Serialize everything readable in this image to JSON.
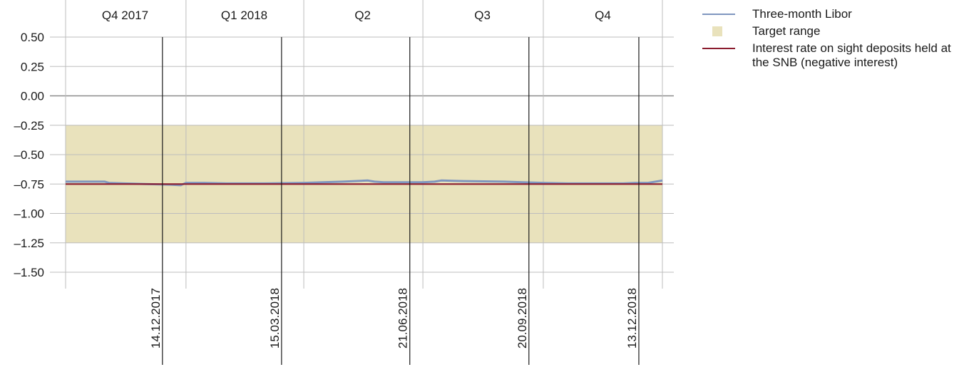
{
  "chart_data": {
    "type": "line",
    "title": "",
    "xlabel": "",
    "ylabel": "",
    "ylim": [
      -1.5,
      0.5
    ],
    "y_ticks": [
      "0.50",
      "0.25",
      "0.00",
      "–0.25",
      "–0.50",
      "–0.75",
      "–1.00",
      "–1.25",
      "–1.50"
    ],
    "y_tick_values": [
      0.5,
      0.25,
      0.0,
      -0.25,
      -0.5,
      -0.75,
      -1.0,
      -1.25,
      -1.5
    ],
    "xlim": [
      "2017-10-01",
      "2018-12-31"
    ],
    "quarters": [
      {
        "label": "Q4 2017",
        "start": "2017-10-01",
        "end": "2017-12-31"
      },
      {
        "label": "Q1 2018",
        "start": "2018-01-01",
        "end": "2018-03-31"
      },
      {
        "label": "Q2",
        "start": "2018-04-01",
        "end": "2018-06-30"
      },
      {
        "label": "Q3",
        "start": "2018-07-01",
        "end": "2018-09-30"
      },
      {
        "label": "Q4",
        "start": "2018-10-01",
        "end": "2018-12-31"
      }
    ],
    "assessment_dates": [
      {
        "label": "14.12.2017",
        "date": "2017-12-14"
      },
      {
        "label": "15.03.2018",
        "date": "2018-03-15"
      },
      {
        "label": "21.06.2018",
        "date": "2018-06-21"
      },
      {
        "label": "20.09.2018",
        "date": "2018-09-20"
      },
      {
        "label": "13.12.2018",
        "date": "2018-12-13"
      }
    ],
    "target_range": {
      "name": "Target range",
      "low": -1.25,
      "high": -0.25,
      "color": "#e9e2bc"
    },
    "series": [
      {
        "name": "Three-month Libor",
        "color": "#7f96bf",
        "x": [
          "2017-10-01",
          "2017-10-31",
          "2017-11-03",
          "2017-11-15",
          "2017-12-01",
          "2017-12-20",
          "2017-12-28",
          "2018-01-01",
          "2018-01-15",
          "2018-02-01",
          "2018-03-01",
          "2018-04-01",
          "2018-05-01",
          "2018-05-20",
          "2018-05-25",
          "2018-06-01",
          "2018-06-15",
          "2018-07-01",
          "2018-07-10",
          "2018-07-15",
          "2018-08-01",
          "2018-09-01",
          "2018-09-15",
          "2018-10-01",
          "2018-10-20",
          "2018-11-01",
          "2018-11-15",
          "2018-12-01",
          "2018-12-10",
          "2018-12-20",
          "2018-12-31"
        ],
        "y": [
          -0.73,
          -0.73,
          -0.74,
          -0.745,
          -0.75,
          -0.755,
          -0.76,
          -0.74,
          -0.74,
          -0.745,
          -0.745,
          -0.74,
          -0.73,
          -0.72,
          -0.73,
          -0.735,
          -0.735,
          -0.735,
          -0.73,
          -0.72,
          -0.725,
          -0.73,
          -0.735,
          -0.74,
          -0.745,
          -0.745,
          -0.745,
          -0.745,
          -0.74,
          -0.74,
          -0.72
        ]
      },
      {
        "name": "Interest rate on sight deposits held at the SNB (negative interest)",
        "color": "#8b1c2e",
        "x": [
          "2017-10-01",
          "2018-12-31"
        ],
        "y": [
          -0.75,
          -0.75
        ]
      }
    ],
    "legend_position": "right"
  },
  "legend": {
    "items": [
      {
        "label": "Three-month Libor",
        "kind": "line",
        "color": "#7f96bf"
      },
      {
        "label": "Target range",
        "kind": "box",
        "color": "#e9e2bc"
      },
      {
        "label": "Interest rate on sight deposits held at the SNB (negative interest)",
        "kind": "line",
        "color": "#8b1c2e"
      }
    ]
  }
}
